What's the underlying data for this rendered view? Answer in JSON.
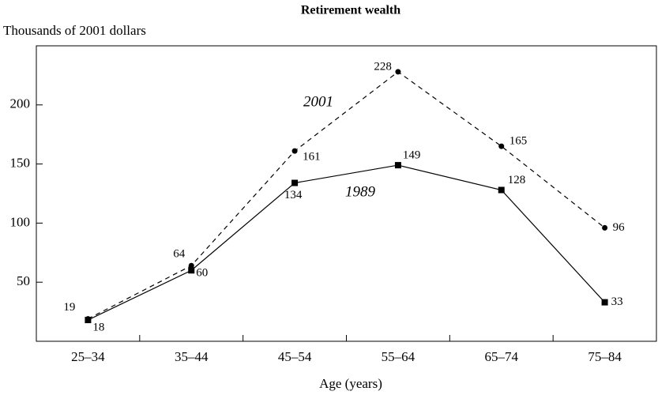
{
  "chart_data": {
    "type": "line",
    "title": "Retirement wealth",
    "y_label": "Thousands of 2001 dollars",
    "x_label": "Age (years)",
    "categories": [
      "25–34",
      "35–44",
      "45–54",
      "55–64",
      "65–74",
      "75–84"
    ],
    "series": [
      {
        "name": "2001",
        "color": "#000000",
        "line_style": "dashed",
        "marker": "circle",
        "values": [
          19,
          64,
          161,
          228,
          165,
          96
        ]
      },
      {
        "name": "1989",
        "color": "#000000",
        "line_style": "solid",
        "marker": "square",
        "values": [
          18,
          60,
          134,
          149,
          128,
          33
        ]
      }
    ],
    "ylim": [
      0,
      250
    ],
    "yticks": [
      50,
      100,
      150,
      200
    ],
    "grid": false
  }
}
